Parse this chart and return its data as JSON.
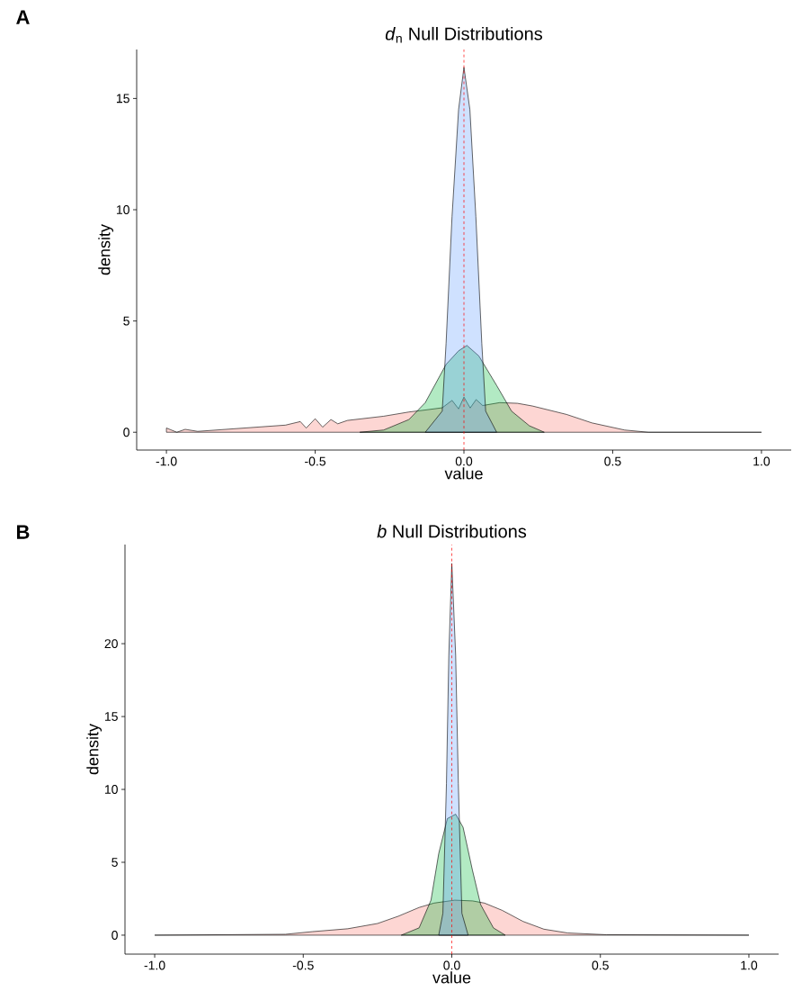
{
  "chart_data": [
    {
      "type": "area",
      "title": "*d*$_{n}$ Null Distributions",
      "xlabel": "value",
      "ylabel": "density",
      "annotations": [
        "A"
      ],
      "xlim": [
        -1.1,
        1.1
      ],
      "ylim": [
        -0.8,
        17.2
      ],
      "xticks": [
        {
          "value": -1,
          "label": "-1.0"
        },
        {
          "value": -0.5,
          "label": "-0.5"
        },
        {
          "value": 0,
          "label": "0.0"
        },
        {
          "value": 0.5,
          "label": "0.5"
        },
        {
          "value": 1,
          "label": "1.0"
        }
      ],
      "yticks": [
        0,
        5,
        10,
        15
      ],
      "ref_lines": [
        {
          "axis": "x",
          "value": 0,
          "color": "#ff0000",
          "line_style": "dashed"
        }
      ],
      "series": [
        {
          "color": "#f8766d",
          "x": [
            -1,
            -0.965,
            -0.937,
            -0.895,
            -0.6,
            -0.55,
            -0.53,
            -0.5,
            -0.475,
            -0.447,
            -0.424,
            -0.392,
            -0.27,
            -0.185,
            -0.13,
            -0.073,
            -0.04,
            -0.018,
            0,
            0.021,
            0.041,
            0.063,
            0.12,
            0.18,
            0.23,
            0.345,
            0.43,
            0.54,
            0.62,
            1.0
          ],
          "values": [
            0.19,
            0,
            0.13,
            0.04,
            0.32,
            0.48,
            0.19,
            0.61,
            0.23,
            0.57,
            0.38,
            0.53,
            0.72,
            0.91,
            1.0,
            1.1,
            1.43,
            1.05,
            1.58,
            1.09,
            1.47,
            1.2,
            1.33,
            1.3,
            1.18,
            0.8,
            0.42,
            0.1,
            0,
            0
          ]
        },
        {
          "color": "#00ba38",
          "x": [
            -0.35,
            -0.27,
            -0.185,
            -0.13,
            -0.06,
            -0.018,
            0.01,
            0.05,
            0.11,
            0.16,
            0.22,
            0.27
          ],
          "values": [
            0,
            0.1,
            0.57,
            1.33,
            3.05,
            3.66,
            3.9,
            3.43,
            2.1,
            0.95,
            0.29,
            0
          ]
        },
        {
          "color": "#619cff",
          "x": [
            -0.13,
            -0.073,
            -0.06,
            -0.04,
            -0.018,
            0,
            0.02,
            0.04,
            0.06,
            0.073,
            0.11
          ],
          "values": [
            0,
            0.95,
            4,
            9.7,
            14.5,
            16.4,
            14.5,
            9.7,
            4,
            0.95,
            0
          ]
        }
      ]
    },
    {
      "type": "area",
      "title": "*b* Null Distributions",
      "xlabel": "value",
      "ylabel": "density",
      "annotations": [
        "B"
      ],
      "xlim": [
        -1.1,
        1.1
      ],
      "ylim": [
        -1.3,
        26.8
      ],
      "xticks": [
        {
          "value": -1,
          "label": "-1.0"
        },
        {
          "value": -0.5,
          "label": "-0.5"
        },
        {
          "value": 0,
          "label": "0.0"
        },
        {
          "value": 0.5,
          "label": "0.5"
        },
        {
          "value": 1,
          "label": "1.0"
        }
      ],
      "yticks": [
        0,
        5,
        10,
        15,
        20
      ],
      "ref_lines": [
        {
          "axis": "x",
          "value": 0,
          "color": "#ff0000",
          "line_style": "dashed"
        }
      ],
      "series": [
        {
          "color": "#f8766d",
          "x": [
            -1,
            -0.56,
            -0.47,
            -0.35,
            -0.25,
            -0.18,
            -0.11,
            -0.06,
            0.01,
            0.07,
            0.11,
            0.17,
            0.24,
            0.31,
            0.39,
            0.52,
            1
          ],
          "values": [
            0,
            0.06,
            0.24,
            0.44,
            0.8,
            1.3,
            1.9,
            2.2,
            2.4,
            2.35,
            2.2,
            1.7,
            0.94,
            0.41,
            0.15,
            0.03,
            0
          ]
        },
        {
          "color": "#00ba38",
          "x": [
            -0.17,
            -0.11,
            -0.07,
            -0.044,
            -0.015,
            0.013,
            0.038,
            0.069,
            0.097,
            0.14,
            0.18
          ],
          "values": [
            0,
            0.5,
            2.4,
            5.6,
            8,
            8.3,
            7.4,
            4.5,
            2.1,
            0.5,
            0
          ]
        },
        {
          "color": "#619cff",
          "x": [
            -0.044,
            -0.03,
            -0.018,
            -0.01,
            0,
            0.013,
            0.022,
            0.034,
            0.055
          ],
          "values": [
            0,
            1.5,
            10.4,
            19.2,
            25.5,
            19.2,
            10.4,
            1.5,
            0
          ]
        }
      ]
    }
  ]
}
